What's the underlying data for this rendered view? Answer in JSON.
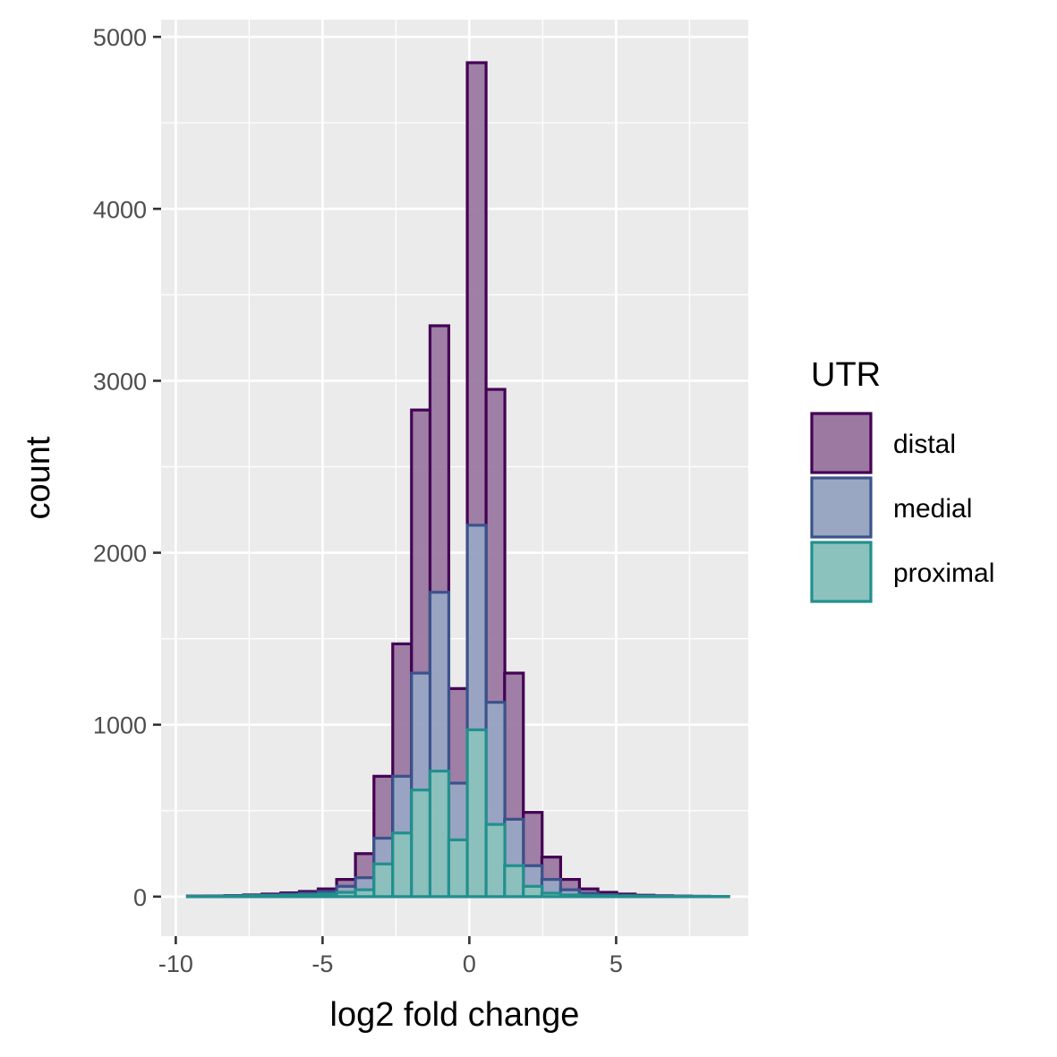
{
  "chart_data": {
    "type": "histogram",
    "title": "",
    "xlabel": "log2 fold change",
    "ylabel": "count",
    "xlim": [
      -10.5,
      9.5
    ],
    "ylim": [
      -230,
      5100
    ],
    "x_ticks": [
      -10,
      -5,
      0,
      5
    ],
    "x_tick_labels": [
      "-10",
      "-5",
      "0",
      "5"
    ],
    "y_ticks": [
      0,
      1000,
      2000,
      3000,
      4000,
      5000
    ],
    "y_tick_labels": [
      "0",
      "1000",
      "2000",
      "3000",
      "4000",
      "5000"
    ],
    "grid": true,
    "legend": {
      "title": "UTR",
      "position": "right"
    },
    "bin_edges": [
      -9.6,
      -8.96,
      -8.33,
      -7.69,
      -7.06,
      -6.42,
      -5.79,
      -5.15,
      -4.52,
      -3.88,
      -3.25,
      -2.61,
      -1.97,
      -1.34,
      -0.7,
      -0.07,
      0.57,
      1.2,
      1.84,
      2.47,
      3.11,
      3.74,
      4.38,
      5.01,
      5.65,
      6.28,
      6.92,
      7.55,
      8.19,
      8.83
    ],
    "series": [
      {
        "name": "distal",
        "fill": "#9b79a1",
        "stroke": "#440154",
        "values": [
          3,
          4,
          6,
          10,
          15,
          22,
          30,
          45,
          100,
          250,
          700,
          1470,
          2830,
          3320,
          1210,
          4850,
          2950,
          1300,
          490,
          230,
          100,
          45,
          25,
          15,
          8,
          5,
          3,
          2,
          1
        ]
      },
      {
        "name": "medial",
        "fill": "#99a7c3",
        "stroke": "#3b528b",
        "values": [
          2,
          3,
          5,
          8,
          10,
          15,
          20,
          30,
          60,
          110,
          340,
          700,
          1300,
          1770,
          660,
          2160,
          1130,
          450,
          180,
          100,
          40,
          20,
          12,
          8,
          5,
          3,
          2,
          1,
          1
        ]
      },
      {
        "name": "proximal",
        "fill": "#8bc2bd",
        "stroke": "#21908d",
        "values": [
          1,
          2,
          3,
          5,
          6,
          8,
          10,
          15,
          25,
          40,
          190,
          370,
          620,
          730,
          330,
          970,
          420,
          180,
          60,
          20,
          10,
          5,
          4,
          3,
          2,
          1,
          1,
          1,
          1
        ]
      }
    ]
  }
}
